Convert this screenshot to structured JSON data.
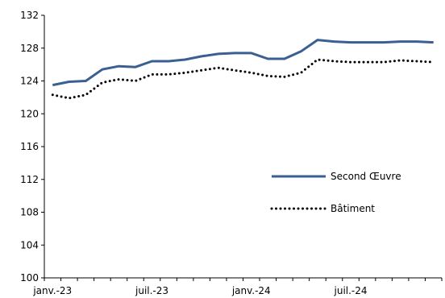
{
  "chart_data": {
    "type": "line",
    "title": "",
    "xlabel": "",
    "ylabel": "",
    "ylim": [
      100,
      132
    ],
    "yticks": [
      100,
      104,
      108,
      112,
      116,
      120,
      124,
      128,
      132
    ],
    "x": [
      "2023-01",
      "2023-02",
      "2023-03",
      "2023-04",
      "2023-05",
      "2023-06",
      "2023-07",
      "2023-08",
      "2023-09",
      "2023-10",
      "2023-11",
      "2023-12",
      "2024-01",
      "2024-02",
      "2024-03",
      "2024-04",
      "2024-05",
      "2024-06",
      "2024-07",
      "2024-08",
      "2024-09",
      "2024-10",
      "2024-11",
      "2024-12"
    ],
    "xtick_labels": [
      {
        "index": 0,
        "label": "janv.-23"
      },
      {
        "index": 6,
        "label": "juil.-23"
      },
      {
        "index": 12,
        "label": "janv.-24"
      },
      {
        "index": 18,
        "label": "juil.-24"
      }
    ],
    "series": [
      {
        "name": "Second Œuvre",
        "color": "#3a5f91",
        "style": "solid",
        "values": [
          123.5,
          123.9,
          124.0,
          125.4,
          125.8,
          125.7,
          126.4,
          126.4,
          126.6,
          127.0,
          127.3,
          127.4,
          127.4,
          126.7,
          126.7,
          127.6,
          129.0,
          128.8,
          128.7,
          128.7,
          128.7,
          128.8,
          128.8,
          128.7
        ]
      },
      {
        "name": "Bâtiment",
        "color": "#000000",
        "style": "dotted",
        "values": [
          122.3,
          121.9,
          122.3,
          123.8,
          124.2,
          124.0,
          124.8,
          124.8,
          125.0,
          125.3,
          125.6,
          125.3,
          125.0,
          124.6,
          124.5,
          125.0,
          126.6,
          126.4,
          126.3,
          126.3,
          126.3,
          126.5,
          126.4,
          126.3
        ]
      }
    ],
    "legend_position": "right"
  }
}
